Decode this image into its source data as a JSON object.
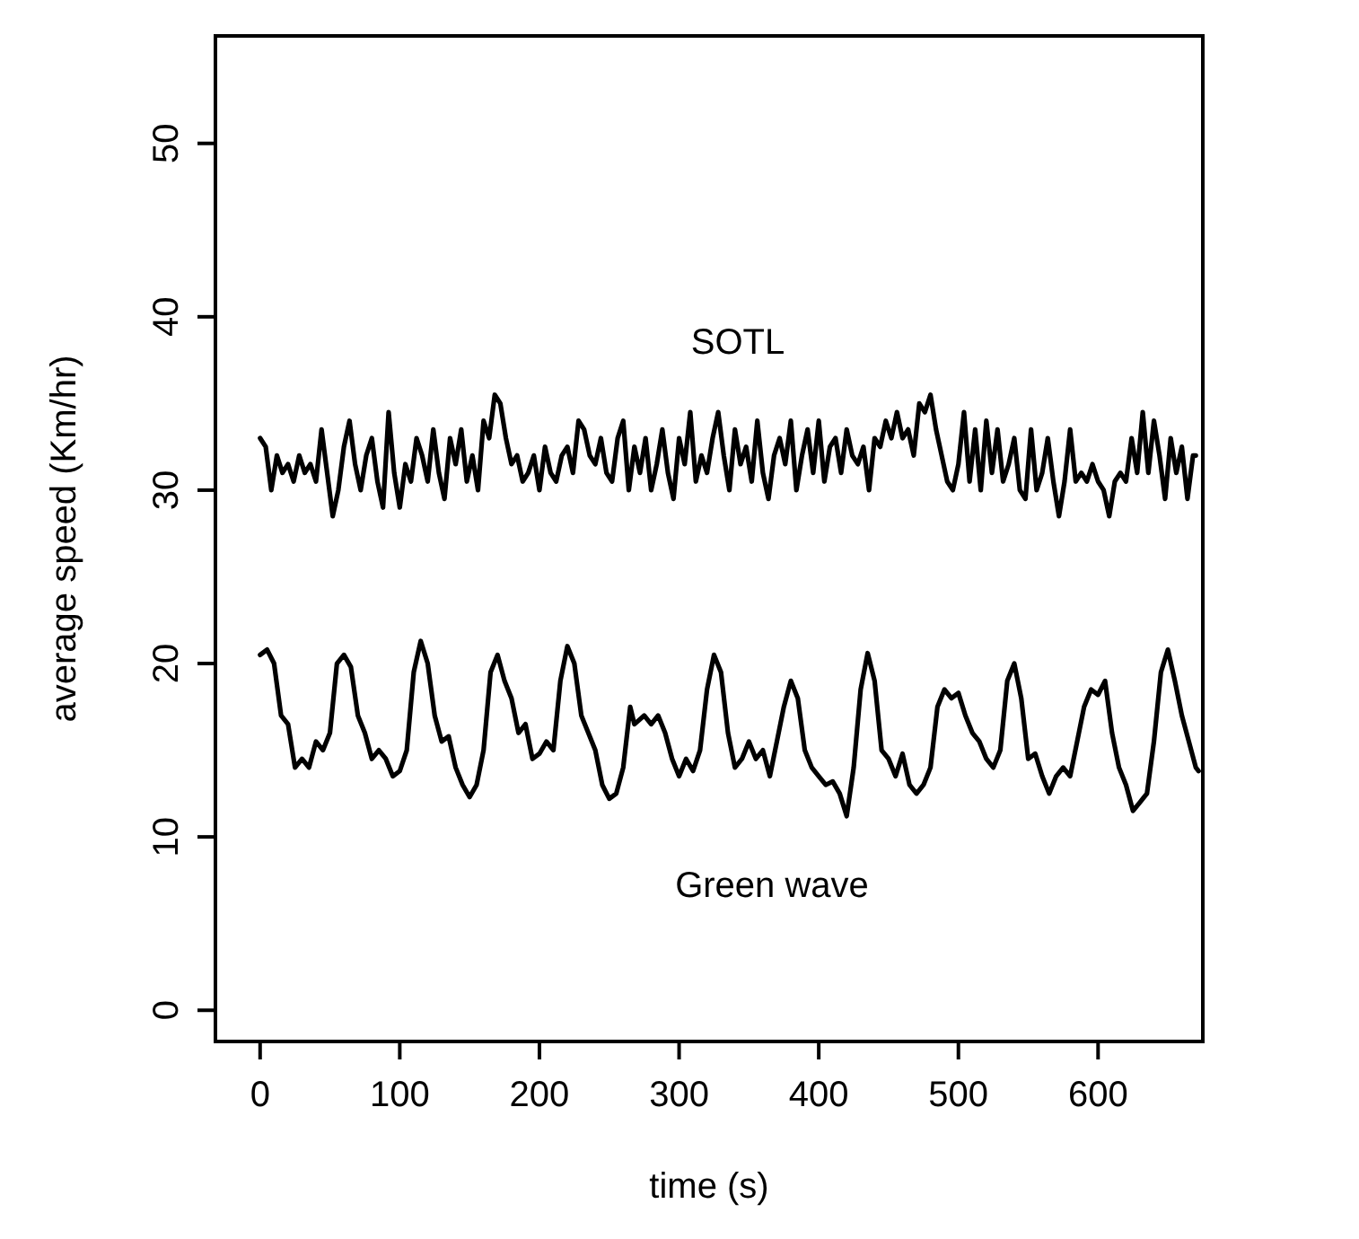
{
  "chart_data": {
    "type": "line",
    "xlabel": "time (s)",
    "ylabel": "average speed (Km/hr)",
    "xlim": [
      -32,
      675
    ],
    "ylim": [
      -1.8,
      56.2
    ],
    "xticks": [
      0,
      100,
      200,
      300,
      400,
      500,
      600
    ],
    "yticks": [
      0,
      10,
      20,
      30,
      40,
      50
    ],
    "grid": false,
    "line_style": "solid",
    "marker": "none",
    "series": [
      {
        "name": "SOTL",
        "color": "#000000",
        "x": [
          0,
          4,
          8,
          12,
          16,
          20,
          24,
          28,
          32,
          36,
          40,
          44,
          48,
          52,
          56,
          60,
          64,
          68,
          72,
          76,
          80,
          84,
          88,
          92,
          96,
          100,
          104,
          108,
          112,
          116,
          120,
          124,
          128,
          132,
          136,
          140,
          144,
          148,
          152,
          156,
          160,
          164,
          168,
          172,
          176,
          180,
          184,
          188,
          192,
          196,
          200,
          204,
          208,
          212,
          216,
          220,
          224,
          228,
          232,
          236,
          240,
          244,
          248,
          252,
          256,
          260,
          264,
          268,
          272,
          276,
          280,
          284,
          288,
          292,
          296,
          300,
          304,
          308,
          312,
          316,
          320,
          324,
          328,
          332,
          336,
          340,
          344,
          348,
          352,
          356,
          360,
          364,
          368,
          372,
          376,
          380,
          384,
          388,
          392,
          396,
          400,
          404,
          408,
          412,
          416,
          420,
          424,
          428,
          432,
          436,
          440,
          444,
          448,
          452,
          456,
          460,
          464,
          468,
          472,
          476,
          480,
          484,
          488,
          492,
          496,
          500,
          504,
          508,
          512,
          516,
          520,
          524,
          528,
          532,
          536,
          540,
          544,
          548,
          552,
          556,
          560,
          564,
          568,
          572,
          576,
          580,
          584,
          588,
          592,
          596,
          600,
          604,
          608,
          612,
          616,
          620,
          624,
          628,
          632,
          636,
          640,
          644,
          648,
          652,
          656,
          660,
          664,
          668,
          670
        ],
        "values": [
          33,
          32.5,
          30,
          32,
          31,
          31.5,
          30.5,
          32,
          31,
          31.5,
          30.5,
          33.5,
          31,
          28.5,
          30,
          32.5,
          34,
          31.5,
          30,
          32,
          33,
          30.5,
          29,
          34.5,
          31,
          29,
          31.5,
          30.5,
          33,
          32,
          30.5,
          33.5,
          31,
          29.5,
          33,
          31.5,
          33.5,
          30.5,
          32,
          30,
          34,
          33,
          35.5,
          35,
          33,
          31.5,
          32,
          30.5,
          31,
          32,
          30,
          32.5,
          31,
          30.5,
          32,
          32.5,
          31,
          34,
          33.5,
          32,
          31.5,
          33,
          31,
          30.5,
          33,
          34,
          30,
          32.5,
          31,
          33,
          30,
          31.5,
          33.5,
          31,
          29.5,
          33,
          31.5,
          34.5,
          30.5,
          32,
          31,
          33,
          34.5,
          32,
          30,
          33.5,
          31.5,
          32.5,
          30.5,
          34,
          31,
          29.5,
          32,
          33,
          31.5,
          34,
          30,
          32,
          33.5,
          31,
          34,
          30.5,
          32.5,
          33,
          31,
          33.5,
          32,
          31.5,
          32.5,
          30,
          33,
          32.5,
          34,
          33,
          34.5,
          33,
          33.5,
          32,
          35,
          34.5,
          35.5,
          33.5,
          32,
          30.5,
          30,
          31.5,
          34.5,
          30.5,
          33.5,
          30,
          34,
          31,
          33.5,
          30.5,
          31.5,
          33,
          30,
          29.5,
          33.5,
          30,
          31,
          33,
          30.5,
          28.5,
          30.5,
          33.5,
          30.5,
          31,
          30.5,
          31.5,
          30.5,
          30,
          28.5,
          30.5,
          31,
          30.5,
          33,
          31,
          34.5,
          31,
          34,
          32,
          29.5,
          33,
          31,
          32.5,
          29.5,
          32,
          32
        ]
      },
      {
        "name": "Green wave",
        "color": "#000000",
        "x": [
          0,
          5,
          10,
          15,
          20,
          25,
          30,
          35,
          40,
          45,
          50,
          55,
          60,
          65,
          70,
          75,
          80,
          85,
          90,
          95,
          100,
          105,
          110,
          115,
          120,
          125,
          130,
          135,
          140,
          145,
          150,
          155,
          160,
          165,
          170,
          175,
          180,
          185,
          190,
          195,
          200,
          205,
          210,
          215,
          220,
          225,
          230,
          235,
          240,
          245,
          250,
          255,
          260,
          265,
          268,
          275,
          280,
          285,
          290,
          295,
          300,
          305,
          310,
          315,
          320,
          325,
          330,
          335,
          340,
          345,
          350,
          355,
          360,
          365,
          370,
          375,
          380,
          385,
          390,
          395,
          400,
          405,
          410,
          415,
          420,
          425,
          430,
          435,
          440,
          445,
          450,
          455,
          460,
          465,
          470,
          475,
          480,
          485,
          490,
          495,
          500,
          505,
          510,
          515,
          520,
          525,
          530,
          535,
          540,
          545,
          550,
          555,
          560,
          565,
          570,
          575,
          580,
          585,
          590,
          595,
          600,
          605,
          610,
          615,
          620,
          625,
          630,
          635,
          640,
          645,
          650,
          655,
          660,
          665,
          670,
          672
        ],
        "values": [
          20.5,
          20.8,
          20,
          17,
          16.5,
          14,
          14.5,
          14,
          15.5,
          15,
          16,
          20,
          20.5,
          19.8,
          17,
          16,
          14.5,
          15,
          14.5,
          13.5,
          13.8,
          15,
          19.5,
          21.3,
          20,
          17,
          15.5,
          15.8,
          14,
          13,
          12.3,
          13,
          15,
          19.5,
          20.5,
          19,
          18,
          16,
          16.5,
          14.5,
          14.8,
          15.5,
          15,
          19,
          21,
          20,
          17,
          16,
          15,
          13,
          12.2,
          12.5,
          14,
          17.5,
          16.5,
          17,
          16.5,
          17,
          16,
          14.5,
          13.5,
          14.5,
          13.8,
          15,
          18.5,
          20.5,
          19.5,
          16,
          14,
          14.5,
          15.5,
          14.5,
          15,
          13.5,
          15.5,
          17.5,
          19,
          18,
          15,
          14,
          13.5,
          13,
          13.2,
          12.5,
          11.2,
          14,
          18.5,
          20.6,
          19,
          15,
          14.5,
          13.5,
          14.8,
          13,
          12.5,
          13,
          14,
          17.5,
          18.5,
          18,
          18.3,
          17,
          16,
          15.5,
          14.5,
          14,
          15,
          19,
          20,
          18,
          14.5,
          14.8,
          13.5,
          12.5,
          13.5,
          14,
          13.5,
          15.5,
          17.5,
          18.5,
          18.2,
          19,
          16,
          14,
          13,
          11.5,
          12,
          12.5,
          15.5,
          19.5,
          20.8,
          19,
          17,
          15.5,
          14,
          13.8
        ]
      }
    ]
  }
}
